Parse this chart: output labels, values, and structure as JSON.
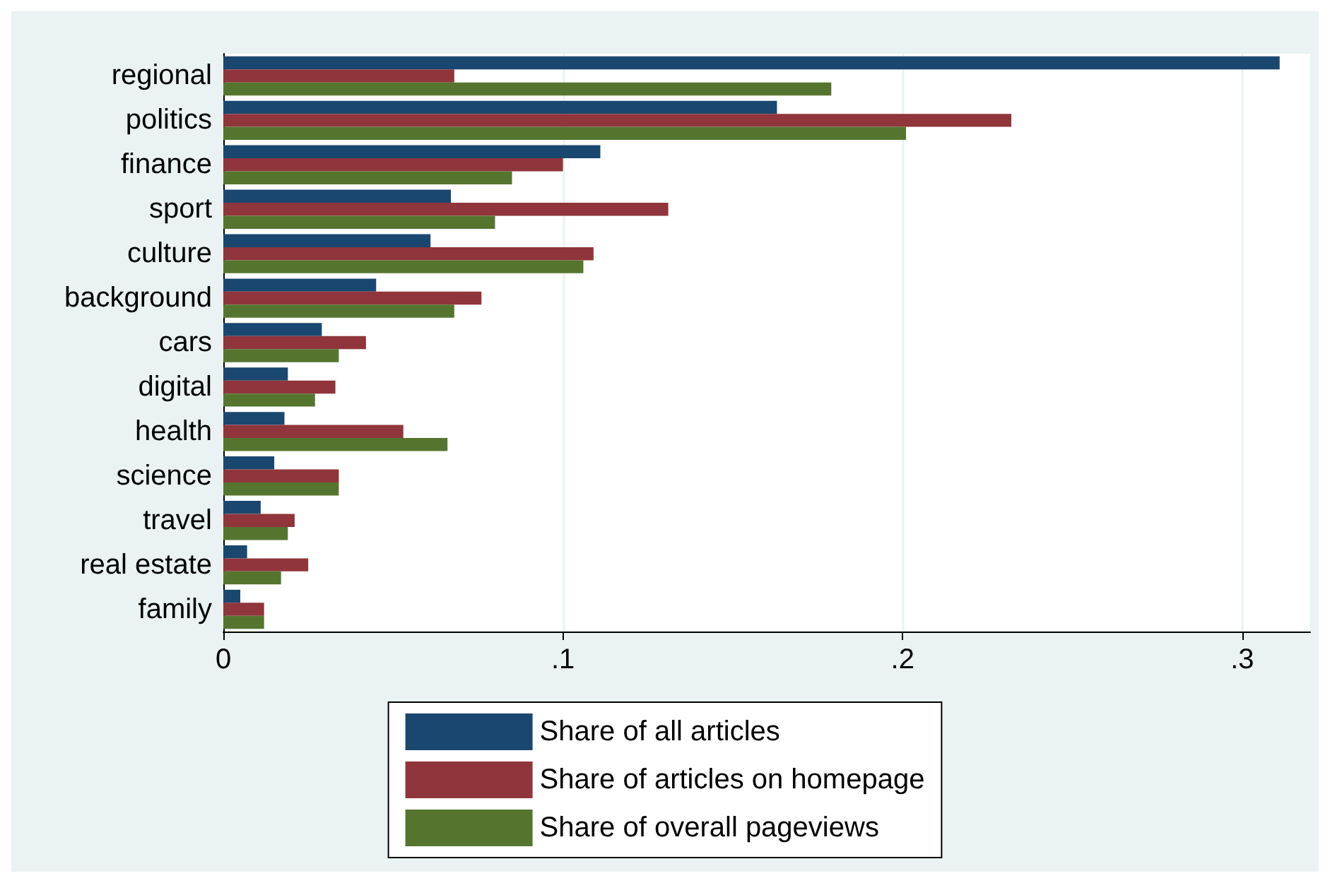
{
  "chart_data": {
    "type": "bar",
    "orientation": "horizontal",
    "categories": [
      "regional",
      "politics",
      "finance",
      "sport",
      "culture",
      "background",
      "cars",
      "digital",
      "health",
      "science",
      "travel",
      "real estate",
      "family"
    ],
    "series": [
      {
        "name": "Share of all articles",
        "color": "#1a476f",
        "values": [
          0.311,
          0.163,
          0.111,
          0.067,
          0.061,
          0.045,
          0.029,
          0.019,
          0.018,
          0.015,
          0.011,
          0.007,
          0.005
        ]
      },
      {
        "name": "Share of articles on homepage",
        "color": "#90353b",
        "values": [
          0.068,
          0.232,
          0.1,
          0.131,
          0.109,
          0.076,
          0.042,
          0.033,
          0.053,
          0.034,
          0.021,
          0.025,
          0.012
        ]
      },
      {
        "name": "Share of overall pageviews",
        "color": "#55752f",
        "values": [
          0.179,
          0.201,
          0.085,
          0.08,
          0.106,
          0.068,
          0.034,
          0.027,
          0.066,
          0.034,
          0.019,
          0.017,
          0.012
        ]
      }
    ],
    "xlim": [
      0,
      0.32
    ],
    "xticks": [
      0,
      {
        "value": 0.1,
        "label": ".1"
      },
      {
        "value": 0.2,
        "label": ".2"
      },
      {
        "value": 0.3,
        "label": ".3"
      }
    ],
    "grid": "x",
    "legend": "bottom"
  }
}
